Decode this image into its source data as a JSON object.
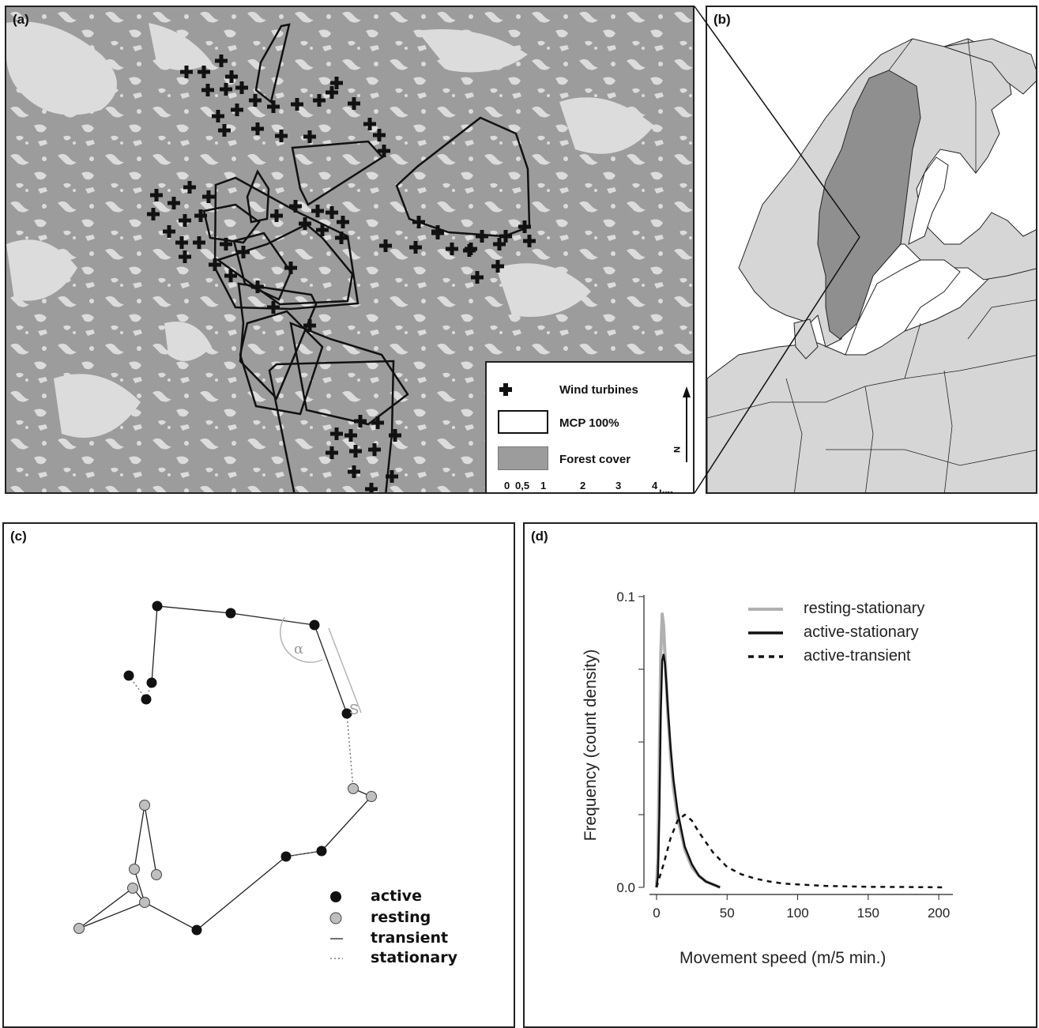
{
  "panels": {
    "a": {
      "label": "(a)",
      "legend": {
        "items": [
          {
            "symbol": "cross-icon",
            "label": "Wind turbines"
          },
          {
            "symbol": "outline-box",
            "label": "MCP 100%"
          },
          {
            "symbol": "gray-box",
            "label": "Forest cover"
          }
        ],
        "north_label": "N",
        "scale_ticks": [
          "0",
          "0,5",
          "1",
          "2",
          "3",
          "4"
        ],
        "scale_unit": "km"
      },
      "colors": {
        "forest": "#9c9c9c",
        "open": "#dcdcdc",
        "mcp_line": "#111111",
        "turbine": "#111111"
      }
    },
    "b": {
      "label": "(b)",
      "colors": {
        "land": "#d6d6d6",
        "highlight": "#8f8f8f",
        "sea": "#ffffff"
      }
    },
    "c": {
      "label": "(c)",
      "angle_label": "α",
      "step_label": "S",
      "legend": [
        {
          "key": "active",
          "label": "active"
        },
        {
          "key": "resting",
          "label": "resting"
        },
        {
          "key": "transient",
          "label": "transient"
        },
        {
          "key": "stationary",
          "label": "stationary"
        }
      ],
      "colors": {
        "active": "#111111",
        "resting": "#bfbfbf",
        "transient": "#222222",
        "stationary": "#888888"
      }
    },
    "d": {
      "label": "(d)"
    }
  },
  "chart_data": {
    "type": "line",
    "xlabel": "Movement speed (m/5 min.)",
    "ylabel": "Frequency (count density)",
    "xlim": [
      -5,
      210
    ],
    "ylim": [
      0,
      0.1
    ],
    "x_ticks": [
      "0",
      "50",
      "100",
      "150",
      "200"
    ],
    "y_ticks": [
      "0.0",
      "0.1"
    ],
    "legend_position": "top-right",
    "series": [
      {
        "name": "resting-stationary",
        "style": "solid",
        "color": "#b0b0b0",
        "x": [
          0,
          1,
          2,
          3,
          4,
          5,
          6,
          7,
          8,
          10,
          12,
          15,
          20,
          25,
          30,
          35,
          40,
          45
        ],
        "y": [
          0.0,
          0.01,
          0.045,
          0.08,
          0.094,
          0.09,
          0.08,
          0.07,
          0.06,
          0.045,
          0.034,
          0.024,
          0.013,
          0.007,
          0.004,
          0.002,
          0.001,
          0.0
        ]
      },
      {
        "name": "active-stationary",
        "style": "solid",
        "color": "#111111",
        "x": [
          0,
          1,
          2,
          3,
          4,
          5,
          6,
          7,
          8,
          10,
          12,
          15,
          20,
          25,
          30,
          35,
          40,
          45
        ],
        "y": [
          0.0,
          0.004,
          0.025,
          0.06,
          0.078,
          0.08,
          0.077,
          0.07,
          0.062,
          0.048,
          0.037,
          0.026,
          0.014,
          0.008,
          0.004,
          0.002,
          0.001,
          0.0
        ]
      },
      {
        "name": "active-transient",
        "style": "dashed",
        "color": "#111111",
        "x": [
          0,
          5,
          10,
          15,
          20,
          25,
          30,
          40,
          50,
          60,
          70,
          80,
          90,
          100,
          120,
          150,
          180,
          205
        ],
        "y": [
          0.0,
          0.008,
          0.017,
          0.023,
          0.025,
          0.023,
          0.019,
          0.012,
          0.007,
          0.0045,
          0.003,
          0.002,
          0.0013,
          0.001,
          0.0005,
          0.0002,
          0.0001,
          0.0
        ]
      }
    ]
  }
}
